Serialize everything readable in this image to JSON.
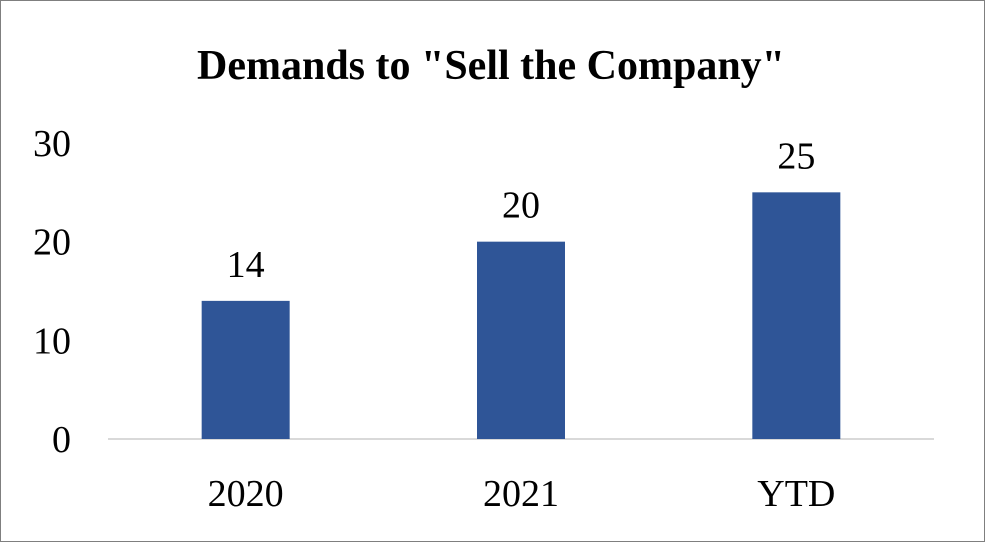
{
  "chart_data": {
    "type": "bar",
    "title": "Demands to \"Sell the Company\"",
    "categories": [
      "2020",
      "2021",
      "YTD"
    ],
    "values": [
      14,
      20,
      25
    ],
    "data_labels": [
      "14",
      "20",
      "25"
    ],
    "yticks": [
      "0",
      "10",
      "20",
      "30"
    ],
    "ylim": [
      0,
      30
    ],
    "xlabel": "",
    "ylabel": "",
    "grid": false,
    "legend": "none",
    "bar_color": "#2f5597"
  }
}
